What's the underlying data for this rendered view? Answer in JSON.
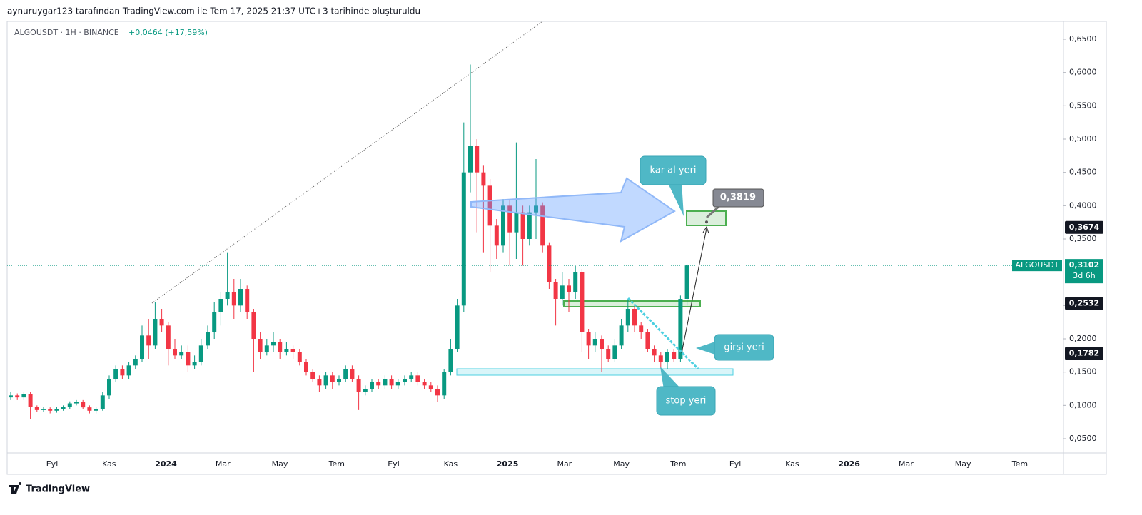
{
  "chart_data": {
    "type": "candlestick",
    "header": "aynuruygar123 tarafından TradingView.com ile Tem 17, 2025 21:37 UTC+3 tarihinde oluşturuldu",
    "title": "ALGOUSDT · 1H · BINANCE",
    "change": "+0,0464 (+17,59%)",
    "footer": "TradingView",
    "up_color": "#089981",
    "down_color": "#f23645",
    "series": {
      "open": [
        0.112,
        0.115,
        0.112,
        0.117,
        0.098,
        0.093,
        0.095,
        0.092,
        0.095,
        0.098,
        0.103,
        0.105,
        0.097,
        0.092,
        0.095,
        0.115,
        0.14,
        0.155,
        0.145,
        0.16,
        0.17,
        0.205,
        0.19,
        0.23,
        0.22,
        0.185,
        0.175,
        0.18,
        0.16,
        0.165,
        0.19,
        0.21,
        0.24,
        0.26,
        0.27,
        0.25,
        0.275,
        0.24,
        0.2,
        0.18,
        0.19,
        0.195,
        0.18,
        0.185,
        0.18,
        0.165,
        0.15,
        0.14,
        0.13,
        0.145,
        0.135,
        0.14,
        0.155,
        0.14,
        0.12,
        0.125,
        0.135,
        0.13,
        0.14,
        0.13,
        0.135,
        0.14,
        0.145,
        0.135,
        0.13,
        0.125,
        0.115,
        0.15,
        0.185,
        0.25,
        0.45,
        0.49,
        0.45,
        0.43,
        0.37,
        0.34,
        0.4,
        0.36,
        0.39,
        0.35,
        0.39,
        0.4,
        0.34,
        0.285,
        0.26,
        0.28,
        0.27,
        0.3,
        0.21,
        0.19,
        0.2,
        0.185,
        0.17,
        0.19,
        0.22,
        0.245,
        0.22,
        0.21,
        0.185,
        0.175,
        0.165,
        0.18,
        0.17,
        0.26
      ],
      "high": [
        0.12,
        0.118,
        0.12,
        0.12,
        0.1,
        0.098,
        0.097,
        0.098,
        0.1,
        0.106,
        0.108,
        0.108,
        0.1,
        0.098,
        0.12,
        0.145,
        0.16,
        0.16,
        0.165,
        0.175,
        0.22,
        0.23,
        0.255,
        0.245,
        0.225,
        0.2,
        0.19,
        0.19,
        0.175,
        0.2,
        0.22,
        0.255,
        0.27,
        0.33,
        0.29,
        0.29,
        0.28,
        0.245,
        0.21,
        0.2,
        0.21,
        0.2,
        0.195,
        0.19,
        0.185,
        0.17,
        0.155,
        0.145,
        0.15,
        0.15,
        0.145,
        0.16,
        0.16,
        0.145,
        0.13,
        0.14,
        0.14,
        0.145,
        0.145,
        0.14,
        0.145,
        0.15,
        0.15,
        0.14,
        0.135,
        0.13,
        0.155,
        0.2,
        0.26,
        0.525,
        0.612,
        0.5,
        0.46,
        0.44,
        0.38,
        0.41,
        0.41,
        0.495,
        0.4,
        0.4,
        0.47,
        0.405,
        0.345,
        0.29,
        0.3,
        0.29,
        0.31,
        0.305,
        0.215,
        0.21,
        0.205,
        0.19,
        0.2,
        0.23,
        0.26,
        0.25,
        0.225,
        0.215,
        0.19,
        0.18,
        0.185,
        0.185,
        0.265,
        0.312
      ],
      "low": [
        0.108,
        0.108,
        0.108,
        0.08,
        0.09,
        0.09,
        0.088,
        0.089,
        0.092,
        0.095,
        0.1,
        0.094,
        0.088,
        0.088,
        0.092,
        0.11,
        0.135,
        0.14,
        0.14,
        0.155,
        0.165,
        0.17,
        0.185,
        0.21,
        0.16,
        0.17,
        0.17,
        0.15,
        0.155,
        0.16,
        0.185,
        0.2,
        0.22,
        0.25,
        0.23,
        0.24,
        0.23,
        0.15,
        0.17,
        0.175,
        0.18,
        0.17,
        0.175,
        0.17,
        0.16,
        0.145,
        0.135,
        0.12,
        0.125,
        0.125,
        0.13,
        0.135,
        0.135,
        0.093,
        0.115,
        0.12,
        0.125,
        0.125,
        0.125,
        0.125,
        0.13,
        0.135,
        0.13,
        0.125,
        0.12,
        0.105,
        0.11,
        0.145,
        0.18,
        0.24,
        0.42,
        0.36,
        0.33,
        0.3,
        0.32,
        0.33,
        0.31,
        0.32,
        0.31,
        0.34,
        0.35,
        0.33,
        0.275,
        0.22,
        0.25,
        0.24,
        0.26,
        0.18,
        0.17,
        0.18,
        0.15,
        0.165,
        0.165,
        0.185,
        0.21,
        0.21,
        0.2,
        0.18,
        0.165,
        0.155,
        0.155,
        0.165,
        0.165,
        0.25
      ],
      "close": [
        0.115,
        0.112,
        0.117,
        0.098,
        0.093,
        0.095,
        0.092,
        0.095,
        0.098,
        0.103,
        0.105,
        0.097,
        0.092,
        0.095,
        0.115,
        0.14,
        0.155,
        0.145,
        0.16,
        0.17,
        0.205,
        0.19,
        0.23,
        0.22,
        0.185,
        0.175,
        0.18,
        0.16,
        0.165,
        0.19,
        0.21,
        0.24,
        0.26,
        0.27,
        0.25,
        0.275,
        0.24,
        0.2,
        0.18,
        0.19,
        0.195,
        0.18,
        0.185,
        0.18,
        0.165,
        0.15,
        0.14,
        0.13,
        0.145,
        0.135,
        0.14,
        0.155,
        0.14,
        0.12,
        0.125,
        0.135,
        0.13,
        0.14,
        0.13,
        0.135,
        0.14,
        0.145,
        0.135,
        0.13,
        0.125,
        0.115,
        0.15,
        0.185,
        0.25,
        0.45,
        0.49,
        0.45,
        0.43,
        0.37,
        0.34,
        0.4,
        0.36,
        0.39,
        0.35,
        0.39,
        0.4,
        0.34,
        0.285,
        0.26,
        0.28,
        0.27,
        0.3,
        0.21,
        0.19,
        0.2,
        0.185,
        0.17,
        0.19,
        0.22,
        0.245,
        0.22,
        0.21,
        0.185,
        0.175,
        0.165,
        0.18,
        0.17,
        0.26,
        0.3102
      ]
    },
    "ylim": [
      0.05,
      0.65
    ],
    "yticks": [
      {
        "value": 0.65,
        "label": "0,6500"
      },
      {
        "value": 0.6,
        "label": "0,6000"
      },
      {
        "value": 0.55,
        "label": "0,5500"
      },
      {
        "value": 0.5,
        "label": "0,5000"
      },
      {
        "value": 0.45,
        "label": "0,4500"
      },
      {
        "value": 0.4,
        "label": "0,4000"
      },
      {
        "value": 0.35,
        "label": "0,3500"
      },
      {
        "value": 0.25,
        "label": "0,2500"
      },
      {
        "value": 0.2,
        "label": "0,2000"
      },
      {
        "value": 0.15,
        "label": "0,1500"
      },
      {
        "value": 0.1,
        "label": "0,1000"
      },
      {
        "value": 0.05,
        "label": "0,0500"
      }
    ],
    "x_labels": [
      "Eyl",
      "Kas",
      "2024",
      "Mar",
      "May",
      "Tem",
      "Eyl",
      "Kas",
      "2025",
      "Mar",
      "May",
      "Tem",
      "Eyl",
      "Kas",
      "2026",
      "Mar",
      "May",
      "Tem"
    ],
    "last_price": {
      "name": "ALGOUSDT",
      "value": 0.3102,
      "label": "0,3102",
      "countdown": "3d 6h"
    },
    "price_labels": [
      {
        "value": 0.3674,
        "label": "0,3674"
      },
      {
        "value": 0.2532,
        "label": "0,2532"
      },
      {
        "value": 0.1782,
        "label": "0,1782"
      }
    ],
    "target": {
      "value": 0.3819,
      "label": "0,3819"
    },
    "annotations": [
      "kar al yeri",
      "girşi yeri",
      "stop yeri"
    ]
  }
}
